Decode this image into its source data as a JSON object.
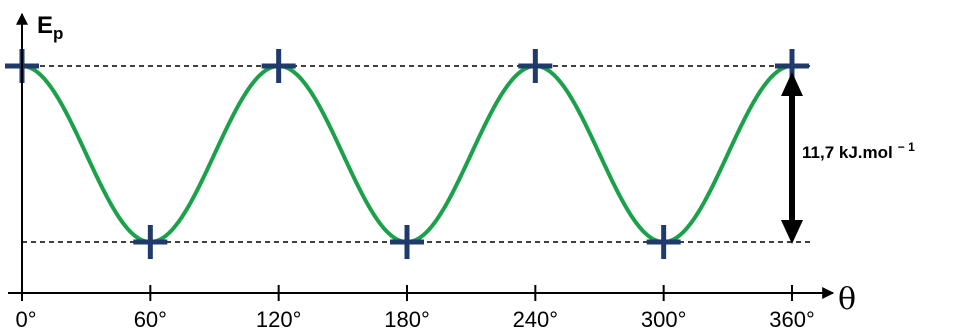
{
  "chart_data": {
    "type": "line",
    "title": "",
    "xlabel": "θ",
    "ylabel_main": "E",
    "ylabel_sub": "p",
    "x_ticks": [
      0,
      60,
      120,
      180,
      240,
      300,
      360
    ],
    "x_tick_labels": [
      "0°",
      "60°",
      "120°",
      "180°",
      "240°",
      "300°",
      "360°"
    ],
    "xlim": [
      0,
      360
    ],
    "ylim": [
      0,
      11.7
    ],
    "series": [
      {
        "x": [
          0,
          60,
          120,
          180,
          240,
          300,
          360
        ],
        "y": [
          11.7,
          0,
          11.7,
          0,
          11.7,
          0,
          11.7
        ]
      }
    ],
    "marked_points": [
      {
        "x": 0,
        "y": 11.7
      },
      {
        "x": 60,
        "y": 0
      },
      {
        "x": 120,
        "y": 11.7
      },
      {
        "x": 180,
        "y": 0
      },
      {
        "x": 240,
        "y": 11.7
      },
      {
        "x": 300,
        "y": 0
      },
      {
        "x": 360,
        "y": 11.7
      }
    ],
    "reference_lines": [
      {
        "y": 11.7,
        "style": "dashed"
      },
      {
        "y": 0,
        "style": "dashed"
      }
    ],
    "annotation": {
      "value_label": "11,7 kJ.mol",
      "exponent": "− 1",
      "x": 360,
      "y_from": 0,
      "y_to": 11.7
    },
    "grid": false,
    "legend": "none"
  },
  "colors": {
    "curve": "#1aa14a",
    "marker": "#1f3a6b",
    "axis": "#000000",
    "dashed": "#000000"
  }
}
